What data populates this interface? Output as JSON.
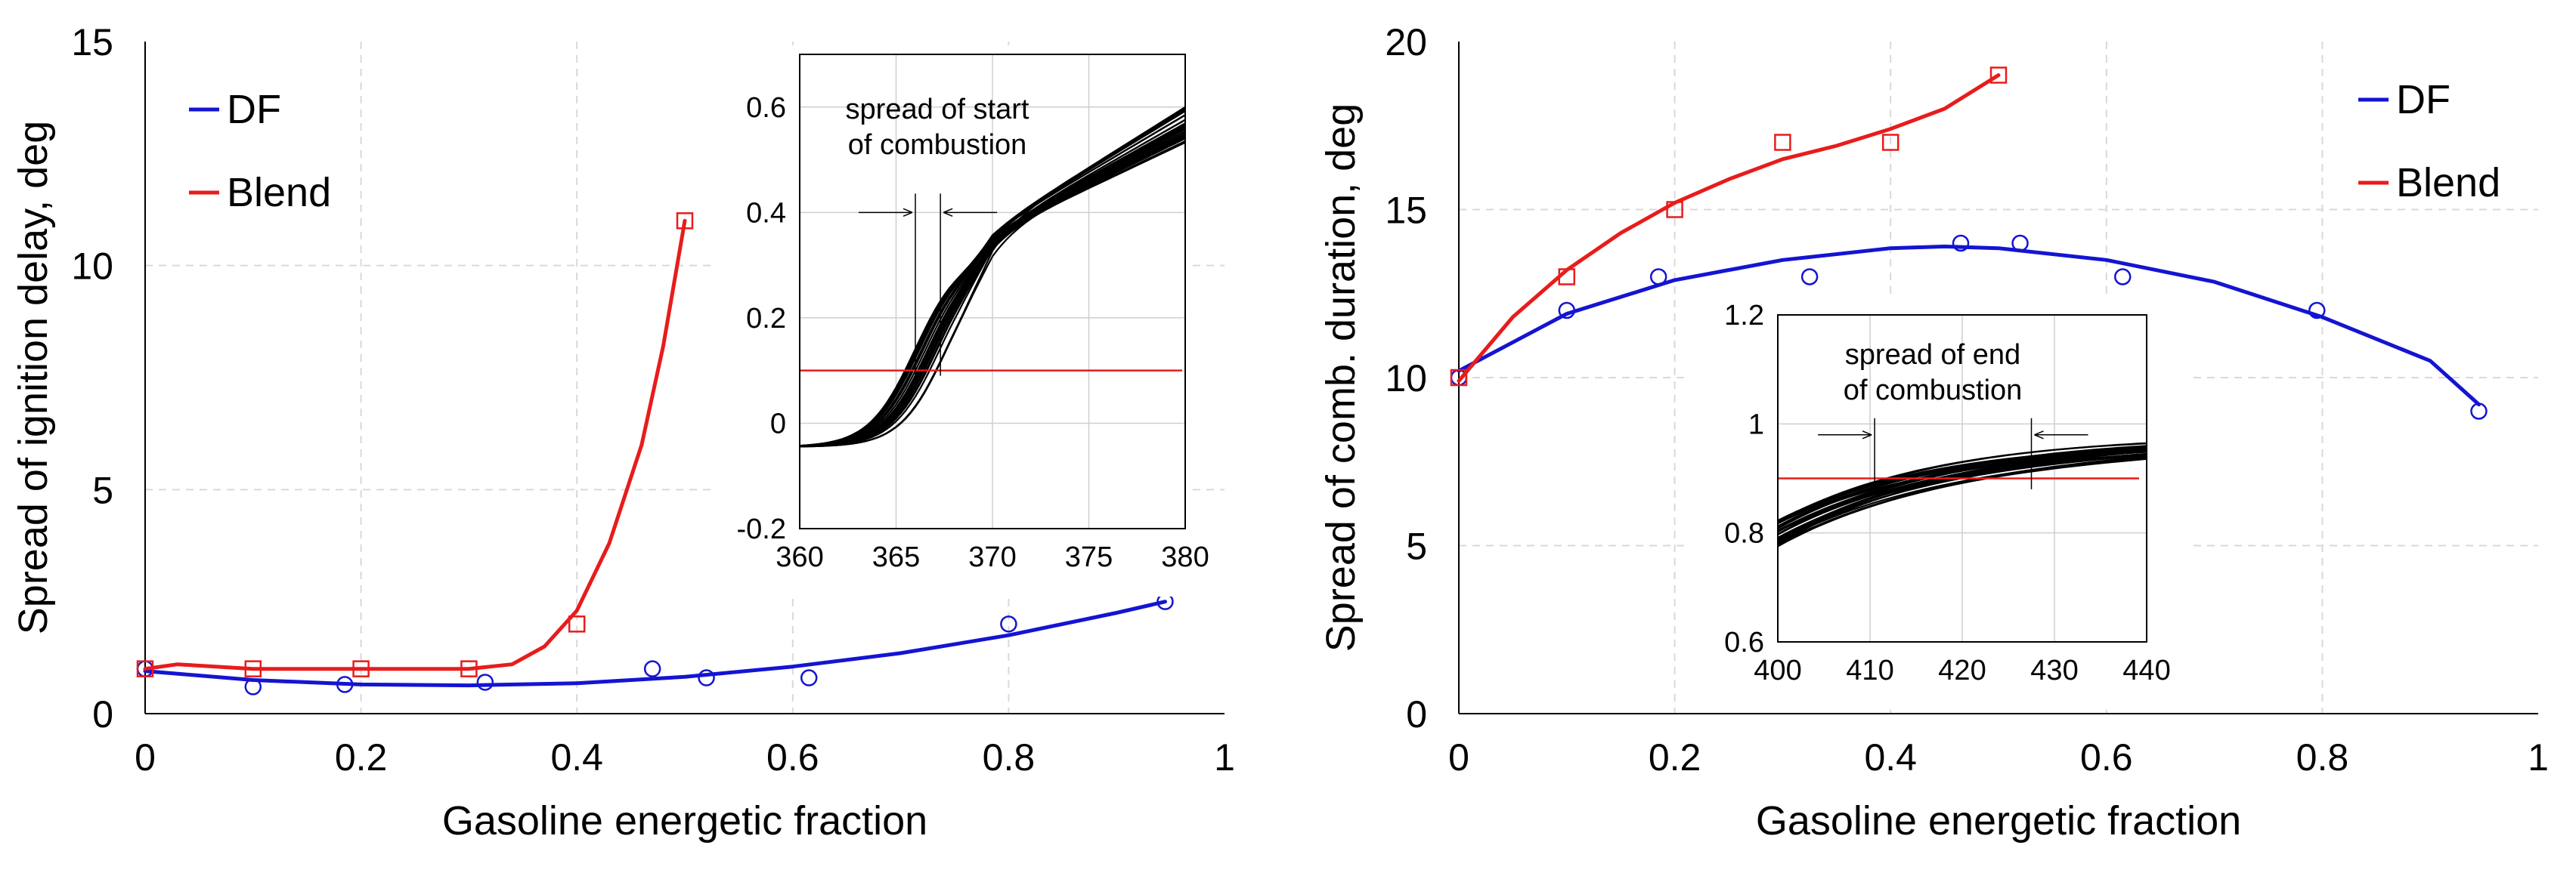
{
  "chart_data": [
    {
      "type": "scatter",
      "title": "",
      "xlabel": "Gasoline energetic fraction",
      "ylabel": "Spread of ignition delay, deg",
      "xlim": [
        0,
        1
      ],
      "ylim": [
        0,
        15
      ],
      "xticks": [
        "0",
        "0.2",
        "0.4",
        "0.6",
        "0.8",
        "1"
      ],
      "yticks": [
        "0",
        "5",
        "10",
        "15"
      ],
      "grid": true,
      "legend": {
        "position": "top-left",
        "entries": [
          "DF",
          "Blend"
        ]
      },
      "series": [
        {
          "name": "DF",
          "color": "#1414d2",
          "marker": "circle",
          "points": [
            [
              0,
              1.0
            ],
            [
              0.1,
              0.6
            ],
            [
              0.185,
              0.65
            ],
            [
              0.315,
              0.7
            ],
            [
              0.47,
              1.0
            ],
            [
              0.52,
              0.8
            ],
            [
              0.615,
              0.8
            ],
            [
              0.8,
              2.0
            ],
            [
              0.945,
              2.5
            ]
          ],
          "fit": [
            [
              0,
              0.95
            ],
            [
              0.1,
              0.75
            ],
            [
              0.2,
              0.65
            ],
            [
              0.3,
              0.63
            ],
            [
              0.4,
              0.68
            ],
            [
              0.5,
              0.82
            ],
            [
              0.6,
              1.05
            ],
            [
              0.7,
              1.35
            ],
            [
              0.8,
              1.75
            ],
            [
              0.9,
              2.25
            ],
            [
              0.945,
              2.5
            ]
          ]
        },
        {
          "name": "Blend",
          "color": "#e81c1c",
          "marker": "square",
          "points": [
            [
              0,
              1.0
            ],
            [
              0.1,
              1.0
            ],
            [
              0.2,
              1.0
            ],
            [
              0.3,
              1.0
            ],
            [
              0.4,
              2.0
            ],
            [
              0.5,
              11.0
            ]
          ],
          "fit": [
            [
              0,
              1.0
            ],
            [
              0.03,
              1.1
            ],
            [
              0.1,
              1.0
            ],
            [
              0.2,
              1.0
            ],
            [
              0.3,
              1.0
            ],
            [
              0.34,
              1.1
            ],
            [
              0.37,
              1.5
            ],
            [
              0.4,
              2.3
            ],
            [
              0.43,
              3.8
            ],
            [
              0.46,
              6.0
            ],
            [
              0.48,
              8.2
            ],
            [
              0.5,
              11.0
            ]
          ]
        }
      ],
      "inset": {
        "xlim": [
          360,
          380
        ],
        "ylim": [
          -0.2,
          0.7
        ],
        "xticks": [
          "360",
          "365",
          "370",
          "375",
          "380"
        ],
        "yticks": [
          "-0.2",
          "0",
          "0.2",
          "0.4",
          "0.6"
        ],
        "threshold": 0.1,
        "marker_lines": [
          366,
          367.3
        ],
        "annotation": [
          "spread of start",
          "of combustion"
        ],
        "annotation_y": 0.4,
        "curve_count": 30
      }
    },
    {
      "type": "scatter",
      "title": "",
      "xlabel": "Gasoline energetic fraction",
      "ylabel": "Spread of comb. duration, deg",
      "xlim": [
        0,
        1
      ],
      "ylim": [
        0,
        20
      ],
      "xticks": [
        "0",
        "0.2",
        "0.4",
        "0.6",
        "0.8",
        "1"
      ],
      "yticks": [
        "0",
        "5",
        "10",
        "15",
        "20"
      ],
      "grid": true,
      "legend": {
        "position": "top-right",
        "entries": [
          "DF",
          "Blend"
        ]
      },
      "series": [
        {
          "name": "DF",
          "color": "#1414d2",
          "marker": "circle",
          "points": [
            [
              0,
              10.0
            ],
            [
              0.1,
              12.0
            ],
            [
              0.185,
              13.0
            ],
            [
              0.325,
              13.0
            ],
            [
              0.465,
              14.0
            ],
            [
              0.52,
              14.0
            ],
            [
              0.615,
              13.0
            ],
            [
              0.795,
              12.0
            ],
            [
              0.945,
              9.0
            ]
          ],
          "fit": [
            [
              0,
              10.2
            ],
            [
              0.1,
              11.9
            ],
            [
              0.2,
              12.9
            ],
            [
              0.3,
              13.5
            ],
            [
              0.4,
              13.85
            ],
            [
              0.45,
              13.9
            ],
            [
              0.5,
              13.85
            ],
            [
              0.6,
              13.5
            ],
            [
              0.7,
              12.85
            ],
            [
              0.8,
              11.8
            ],
            [
              0.9,
              10.5
            ],
            [
              0.945,
              9.2
            ]
          ]
        },
        {
          "name": "Blend",
          "color": "#e81c1c",
          "marker": "square",
          "points": [
            [
              0,
              10.0
            ],
            [
              0.1,
              13.0
            ],
            [
              0.2,
              15.0
            ],
            [
              0.3,
              17.0
            ],
            [
              0.4,
              17.0
            ],
            [
              0.5,
              19.0
            ]
          ],
          "fit": [
            [
              0,
              9.9
            ],
            [
              0.05,
              11.8
            ],
            [
              0.1,
              13.2
            ],
            [
              0.15,
              14.3
            ],
            [
              0.2,
              15.2
            ],
            [
              0.25,
              15.9
            ],
            [
              0.3,
              16.5
            ],
            [
              0.35,
              16.9
            ],
            [
              0.4,
              17.4
            ],
            [
              0.45,
              18.0
            ],
            [
              0.5,
              19.0
            ]
          ]
        }
      ],
      "inset": {
        "xlim": [
          400,
          440
        ],
        "ylim": [
          0.6,
          1.2
        ],
        "xticks": [
          "400",
          "410",
          "420",
          "430",
          "440"
        ],
        "yticks": [
          "0.6",
          "0.8",
          "1",
          "1.2"
        ],
        "threshold": 0.9,
        "marker_lines": [
          410.5,
          427.5
        ],
        "annotation": [
          "spread of end",
          "of combustion"
        ],
        "annotation_y": 0.98,
        "curve_count": 30
      }
    }
  ]
}
